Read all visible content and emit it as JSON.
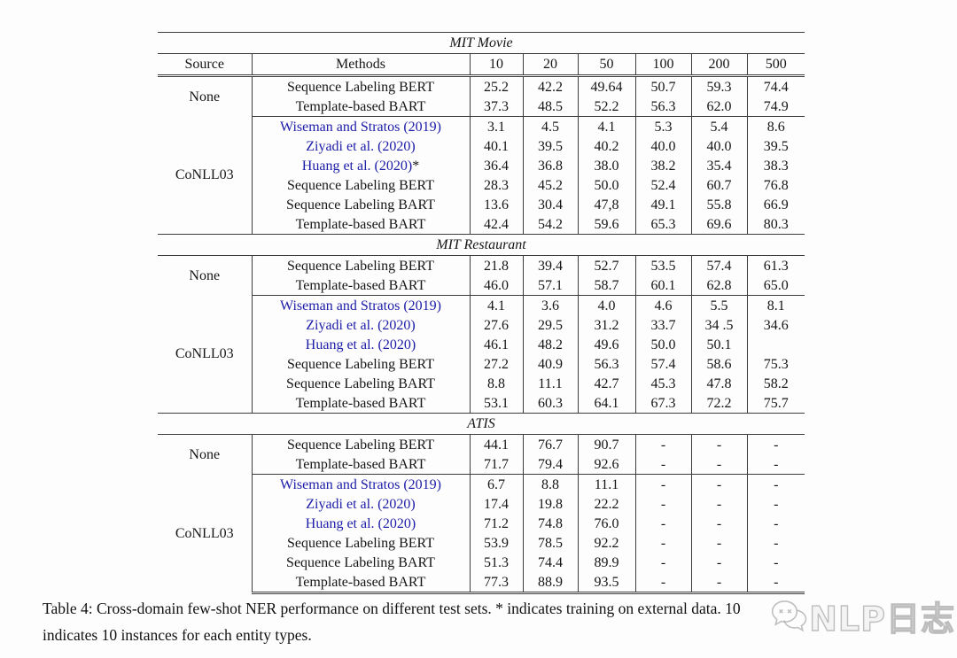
{
  "colors": {
    "citation_blue": "#1c1ca8",
    "rule_gray": "#3c3c3c",
    "text_black": "#161616",
    "watermark_gray": "#9a9a9a"
  },
  "table": {
    "column_headers": [
      "Source",
      "Methods",
      "10",
      "20",
      "50",
      "100",
      "200",
      "500"
    ],
    "sections": [
      {
        "title": "MIT Movie",
        "groups": [
          {
            "source": "None",
            "rows": [
              {
                "method": "Sequence Labeling BERT",
                "link": false,
                "suffix": "",
                "values": [
                  "25.2",
                  "42.2",
                  "49.64",
                  "50.7",
                  "59.3",
                  "74.4"
                ]
              },
              {
                "method": "Template-based BART",
                "link": false,
                "suffix": "",
                "values": [
                  "37.3",
                  "48.5",
                  "52.2",
                  "56.3",
                  "62.0",
                  "74.9"
                ]
              }
            ]
          },
          {
            "source": "CoNLL03",
            "rows": [
              {
                "method": "Wiseman and Stratos (2019)",
                "link": true,
                "suffix": "",
                "values": [
                  "3.1",
                  "4.5",
                  "4.1",
                  "5.3",
                  "5.4",
                  "8.6"
                ]
              },
              {
                "method": "Ziyadi et al. (2020)",
                "link": true,
                "suffix": "",
                "values": [
                  "40.1",
                  "39.5",
                  "40.2",
                  "40.0",
                  "40.0",
                  "39.5"
                ]
              },
              {
                "method": "Huang et al. (2020)",
                "link": true,
                "suffix": "*",
                "values": [
                  "36.4",
                  "36.8",
                  "38.0",
                  "38.2",
                  "35.4",
                  "38.3"
                ]
              },
              {
                "method": "Sequence Labeling BERT",
                "link": false,
                "suffix": "",
                "values": [
                  "28.3",
                  "45.2",
                  "50.0",
                  "52.4",
                  "60.7",
                  "76.8"
                ]
              },
              {
                "method": "Sequence Labeling BART",
                "link": false,
                "suffix": "",
                "values": [
                  "13.6",
                  "30.4",
                  "47,8",
                  "49.1",
                  "55.8",
                  "66.9"
                ]
              },
              {
                "method": "Template-based BART",
                "link": false,
                "suffix": "",
                "values": [
                  "42.4",
                  "54.2",
                  "59.6",
                  "65.3",
                  "69.6",
                  "80.3"
                ]
              }
            ]
          }
        ]
      },
      {
        "title": "MIT Restaurant",
        "groups": [
          {
            "source": "None",
            "rows": [
              {
                "method": "Sequence Labeling BERT",
                "link": false,
                "suffix": "",
                "values": [
                  "21.8",
                  "39.4",
                  "52.7",
                  "53.5",
                  "57.4",
                  "61.3"
                ]
              },
              {
                "method": "Template-based BART",
                "link": false,
                "suffix": "",
                "values": [
                  "46.0",
                  "57.1",
                  "58.7",
                  "60.1",
                  "62.8",
                  "65.0"
                ]
              }
            ]
          },
          {
            "source": "CoNLL03",
            "rows": [
              {
                "method": "Wiseman and Stratos (2019)",
                "link": true,
                "suffix": "",
                "values": [
                  "4.1",
                  "3.6",
                  "4.0",
                  "4.6",
                  "5.5",
                  "8.1"
                ]
              },
              {
                "method": "Ziyadi et al. (2020)",
                "link": true,
                "suffix": "",
                "values": [
                  "27.6",
                  "29.5",
                  "31.2",
                  "33.7",
                  "34 .5",
                  "34.6"
                ]
              },
              {
                "method": "Huang et al. (2020)",
                "link": true,
                "suffix": "",
                "values": [
                  "46.1",
                  "48.2",
                  "49.6",
                  "50.0",
                  "50.1",
                  ""
                ]
              },
              {
                "method": "Sequence Labeling BERT",
                "link": false,
                "suffix": "",
                "values": [
                  "27.2",
                  "40.9",
                  "56.3",
                  "57.4",
                  "58.6",
                  "75.3"
                ]
              },
              {
                "method": "Sequence Labeling BART",
                "link": false,
                "suffix": "",
                "values": [
                  "8.8",
                  "11.1",
                  "42.7",
                  "45.3",
                  "47.8",
                  "58.2"
                ]
              },
              {
                "method": "Template-based BART",
                "link": false,
                "suffix": "",
                "values": [
                  "53.1",
                  "60.3",
                  "64.1",
                  "67.3",
                  "72.2",
                  "75.7"
                ]
              }
            ]
          }
        ]
      },
      {
        "title": "ATIS",
        "groups": [
          {
            "source": "None",
            "rows": [
              {
                "method": "Sequence Labeling BERT",
                "link": false,
                "suffix": "",
                "values": [
                  "44.1",
                  "76.7",
                  "90.7",
                  "-",
                  "-",
                  "-"
                ]
              },
              {
                "method": "Template-based BART",
                "link": false,
                "suffix": "",
                "values": [
                  "71.7",
                  "79.4",
                  "92.6",
                  "-",
                  "-",
                  "-"
                ]
              }
            ]
          },
          {
            "source": "CoNLL03",
            "rows": [
              {
                "method": "Wiseman and Stratos (2019)",
                "link": true,
                "suffix": "",
                "values": [
                  "6.7",
                  "8.8",
                  "11.1",
                  "-",
                  "-",
                  "-"
                ]
              },
              {
                "method": "Ziyadi et al. (2020)",
                "link": true,
                "suffix": "",
                "values": [
                  "17.4",
                  "19.8",
                  "22.2",
                  "-",
                  "-",
                  "-"
                ]
              },
              {
                "method": "Huang et al. (2020)",
                "link": true,
                "suffix": "",
                "values": [
                  "71.2",
                  "74.8",
                  "76.0",
                  "-",
                  "-",
                  "-"
                ]
              },
              {
                "method": "Sequence Labeling BERT",
                "link": false,
                "suffix": "",
                "values": [
                  "53.9",
                  "78.5",
                  "92.2",
                  "-",
                  "-",
                  "-"
                ]
              },
              {
                "method": "Sequence Labeling BART",
                "link": false,
                "suffix": "",
                "values": [
                  "51.3",
                  "74.4",
                  "89.9",
                  "-",
                  "-",
                  "-"
                ]
              },
              {
                "method": "Template-based BART",
                "link": false,
                "suffix": "",
                "values": [
                  "77.3",
                  "88.9",
                  "93.5",
                  "-",
                  "-",
                  "-"
                ]
              }
            ]
          }
        ]
      }
    ]
  },
  "caption": {
    "line1": "Table 4: Cross-domain few-shot NER performance on different test sets. * indicates training on external data. 10",
    "line2": "indicates 10 instances for each entity types."
  },
  "watermark": {
    "icon": "chat-bubbles-icon",
    "text": "NLP日志"
  }
}
